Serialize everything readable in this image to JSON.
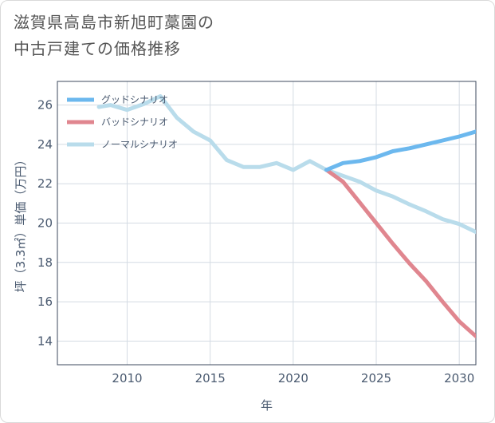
{
  "title_lines": [
    "滋賀県高島市新旭町藁園の",
    "中古戸建ての価格推移"
  ],
  "chart_data": {
    "type": "line",
    "xlabel": "年",
    "ylabel": "坪（3.3㎡）単価（万円）",
    "xlim": [
      2005.8,
      2031
    ],
    "ylim": [
      12.8,
      27.2
    ],
    "x_ticks": [
      2010,
      2015,
      2020,
      2025,
      2030
    ],
    "y_ticks": [
      14,
      16,
      18,
      20,
      22,
      24,
      26
    ],
    "grid": true,
    "legend_position": "top-left",
    "series": [
      {
        "name": "グッドシナリオ",
        "color": "#6cb8ee",
        "points": [
          [
            2022,
            22.7
          ],
          [
            2023,
            23.05
          ],
          [
            2024,
            23.15
          ],
          [
            2025,
            23.35
          ],
          [
            2026,
            23.65
          ],
          [
            2027,
            23.8
          ],
          [
            2028,
            24.0
          ],
          [
            2029,
            24.2
          ],
          [
            2030,
            24.4
          ],
          [
            2031,
            24.65
          ]
        ]
      },
      {
        "name": "バッドシナリオ",
        "color": "#e0868f",
        "points": [
          [
            2022,
            22.7
          ],
          [
            2023,
            22.1
          ],
          [
            2024,
            21.05
          ],
          [
            2025,
            20.0
          ],
          [
            2026,
            18.95
          ],
          [
            2027,
            17.95
          ],
          [
            2028,
            17.05
          ],
          [
            2029,
            16.0
          ],
          [
            2030,
            15.0
          ],
          [
            2031,
            14.25
          ]
        ]
      },
      {
        "name": "ノーマルシナリオ",
        "color": "#b9dceb",
        "points": [
          [
            2008.3,
            25.9
          ],
          [
            2009,
            26.0
          ],
          [
            2010,
            25.75
          ],
          [
            2011,
            26.05
          ],
          [
            2012,
            26.45
          ],
          [
            2013,
            25.35
          ],
          [
            2014,
            24.65
          ],
          [
            2015,
            24.2
          ],
          [
            2016,
            23.2
          ],
          [
            2017,
            22.85
          ],
          [
            2018,
            22.85
          ],
          [
            2019,
            23.05
          ],
          [
            2020,
            22.7
          ],
          [
            2021,
            23.15
          ],
          [
            2022,
            22.7
          ],
          [
            2023,
            22.4
          ],
          [
            2024,
            22.1
          ],
          [
            2025,
            21.65
          ],
          [
            2026,
            21.35
          ],
          [
            2027,
            20.95
          ],
          [
            2028,
            20.6
          ],
          [
            2029,
            20.2
          ],
          [
            2030,
            19.95
          ],
          [
            2031,
            19.55
          ]
        ]
      }
    ]
  }
}
